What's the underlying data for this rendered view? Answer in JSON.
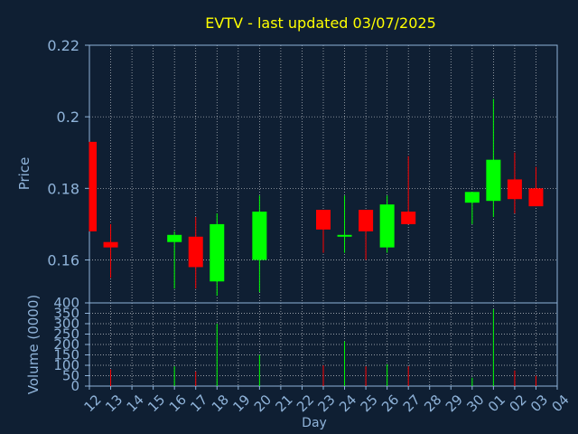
{
  "colors": {
    "background": "#0f1f33",
    "title": "#ffff00",
    "axis_text": "#8fb3d9",
    "axis_line": "#8fb3d9",
    "grid": "#ffffff",
    "up": "#00ff00",
    "down": "#ff0000"
  },
  "chart_data": [
    {
      "type": "candlestick",
      "title": "EVTV - last updated 03/07/2025",
      "ylabel": "Price",
      "ylim": [
        0.148,
        0.22
      ],
      "yticks": [
        "0.16",
        "0.18",
        "0.2",
        "0.22"
      ],
      "grid": true,
      "days": [
        "12",
        "13",
        "14",
        "15",
        "16",
        "17",
        "18",
        "19",
        "20",
        "21",
        "22",
        "23",
        "24",
        "25",
        "26",
        "27",
        "28",
        "29",
        "30",
        "01",
        "02",
        "03",
        "04"
      ],
      "candles": [
        {
          "day": "12",
          "open": 0.193,
          "high": 0.193,
          "low": 0.168,
          "close": 0.168
        },
        {
          "day": "13",
          "open": 0.165,
          "high": 0.17,
          "low": 0.155,
          "close": 0.1635
        },
        {
          "day": "16",
          "open": 0.165,
          "high": 0.168,
          "low": 0.152,
          "close": 0.167
        },
        {
          "day": "17",
          "open": 0.1665,
          "high": 0.172,
          "low": 0.152,
          "close": 0.158
        },
        {
          "day": "18",
          "open": 0.154,
          "high": 0.173,
          "low": 0.15,
          "close": 0.17
        },
        {
          "day": "20",
          "open": 0.16,
          "high": 0.178,
          "low": 0.151,
          "close": 0.1735
        },
        {
          "day": "23",
          "open": 0.174,
          "high": 0.174,
          "low": 0.162,
          "close": 0.1685
        },
        {
          "day": "24",
          "open": 0.1665,
          "high": 0.178,
          "low": 0.162,
          "close": 0.167
        },
        {
          "day": "25",
          "open": 0.174,
          "high": 0.174,
          "low": 0.16,
          "close": 0.168
        },
        {
          "day": "26",
          "open": 0.1635,
          "high": 0.178,
          "low": 0.162,
          "close": 0.1755
        },
        {
          "day": "27",
          "open": 0.1735,
          "high": 0.189,
          "low": 0.17,
          "close": 0.17
        },
        {
          "day": "30",
          "open": 0.176,
          "high": 0.179,
          "low": 0.17,
          "close": 0.179
        },
        {
          "day": "01",
          "open": 0.1765,
          "high": 0.205,
          "low": 0.172,
          "close": 0.188
        },
        {
          "day": "02",
          "open": 0.1825,
          "high": 0.19,
          "low": 0.173,
          "close": 0.177
        },
        {
          "day": "03",
          "open": 0.18,
          "high": 0.186,
          "low": 0.175,
          "close": 0.175
        }
      ]
    },
    {
      "type": "bar",
      "ylabel": "Volume (0000)",
      "xlabel": "Day",
      "ylim": [
        0,
        400
      ],
      "yticks": [
        "0",
        "50",
        "100",
        "150",
        "200",
        "250",
        "300",
        "350",
        "400"
      ],
      "grid": true,
      "volume": [
        {
          "day": "12",
          "value": 0,
          "color": "red"
        },
        {
          "day": "13",
          "value": 80,
          "color": "red"
        },
        {
          "day": "16",
          "value": 95,
          "color": "green"
        },
        {
          "day": "17",
          "value": 70,
          "color": "red"
        },
        {
          "day": "18",
          "value": 300,
          "color": "green"
        },
        {
          "day": "20",
          "value": 150,
          "color": "green"
        },
        {
          "day": "23",
          "value": 100,
          "color": "red"
        },
        {
          "day": "24",
          "value": 215,
          "color": "green"
        },
        {
          "day": "25",
          "value": 95,
          "color": "red"
        },
        {
          "day": "26",
          "value": 105,
          "color": "green"
        },
        {
          "day": "27",
          "value": 95,
          "color": "red"
        },
        {
          "day": "30",
          "value": 40,
          "color": "green"
        },
        {
          "day": "01",
          "value": 370,
          "color": "green"
        },
        {
          "day": "02",
          "value": 75,
          "color": "red"
        },
        {
          "day": "03",
          "value": 50,
          "color": "red"
        }
      ]
    }
  ]
}
